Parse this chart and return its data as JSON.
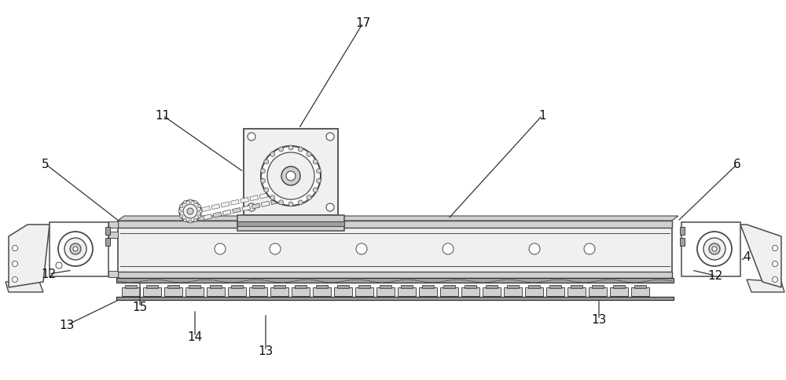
{
  "bg_color": "#ffffff",
  "lc": "#4a4a4a",
  "dc": "#2a2a2a",
  "fl": "#f0f0f0",
  "fm": "#d0d0d0",
  "fd": "#a0a0a0",
  "figsize": [
    10.0,
    4.85
  ],
  "dpi": 100
}
